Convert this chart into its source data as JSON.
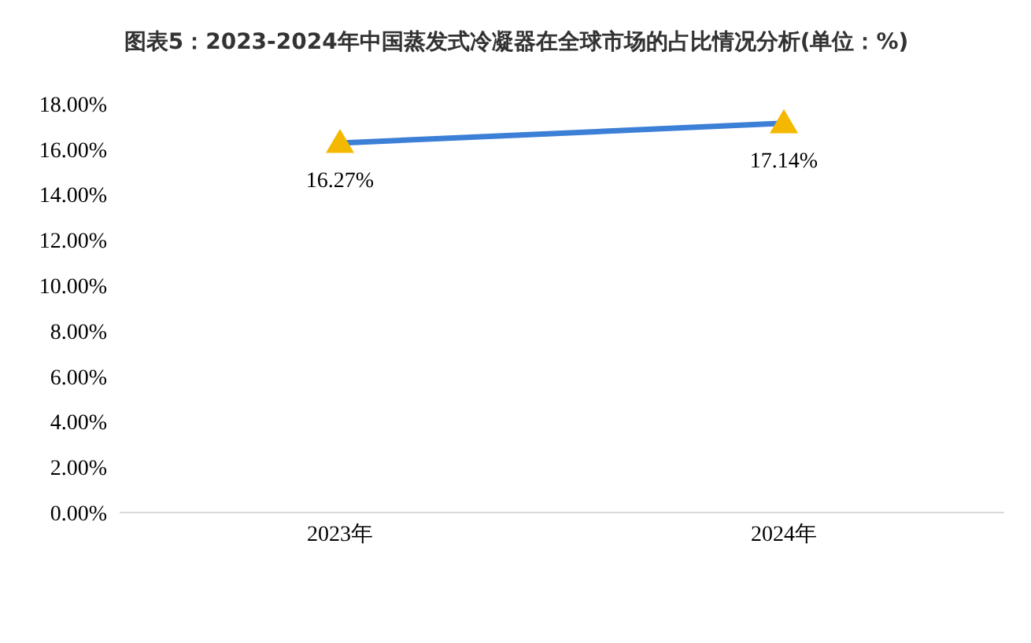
{
  "chart_data": {
    "type": "line",
    "title": "图表5：2023-2024年中国蒸发式冷凝器在全球市场的占比情况分析(单位：%)",
    "categories": [
      "2023年",
      "2024年"
    ],
    "series": [
      {
        "color": "#3c7fd6",
        "colors": [
          "#f5b800",
          "#f5b800"
        ],
        "values": [
          16.27,
          17.14
        ],
        "value_labels": [
          "16.27%",
          "17.14%"
        ]
      }
    ],
    "ylim": [
      0,
      18
    ],
    "yticks": [
      {
        "value": 0,
        "label": "0.00%"
      },
      {
        "value": 2,
        "label": "2.00%"
      },
      {
        "value": 4,
        "label": "4.00%"
      },
      {
        "value": 6,
        "label": "6.00%"
      },
      {
        "value": 8,
        "label": "8.00%"
      },
      {
        "value": 10,
        "label": "10.00%"
      },
      {
        "value": 12,
        "label": "12.00%"
      },
      {
        "value": 14,
        "label": "14.00%"
      },
      {
        "value": 16,
        "label": "16.00%"
      },
      {
        "value": 18,
        "label": "18.00%"
      }
    ],
    "grid": false,
    "marker": "triangle",
    "line_style": "solid"
  }
}
